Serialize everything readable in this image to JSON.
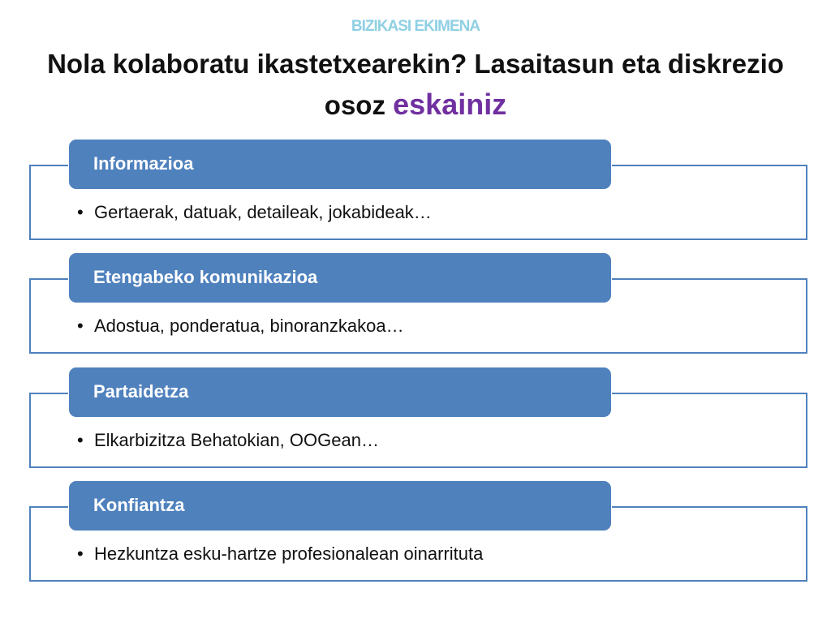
{
  "kicker": "BIZIKASI EKIMENA",
  "title": {
    "main": "Nola kolaboratu ikastetxearekin? Lasaitasun eta diskrezio osoz ",
    "highlight": "eskainiz"
  },
  "items": [
    {
      "header": "Informazioa",
      "bullet": "Gertaerak, datuak, detaileak, jokabideak…"
    },
    {
      "header": "Etengabeko komunikazioa",
      "bullet": "Adostua, ponderatua, binoranzkakoa…"
    },
    {
      "header": "Partaidetza",
      "bullet": "Elkarbizitza Behatokian, OOGean…"
    },
    {
      "header": "Konfiantza",
      "bullet": "Hezkuntza esku-hartze profesionalean oinarrituta"
    }
  ],
  "colors": {
    "header_fill": "#4f81bd",
    "highlight": "#7030a0",
    "kicker": "#8fd0e3"
  }
}
